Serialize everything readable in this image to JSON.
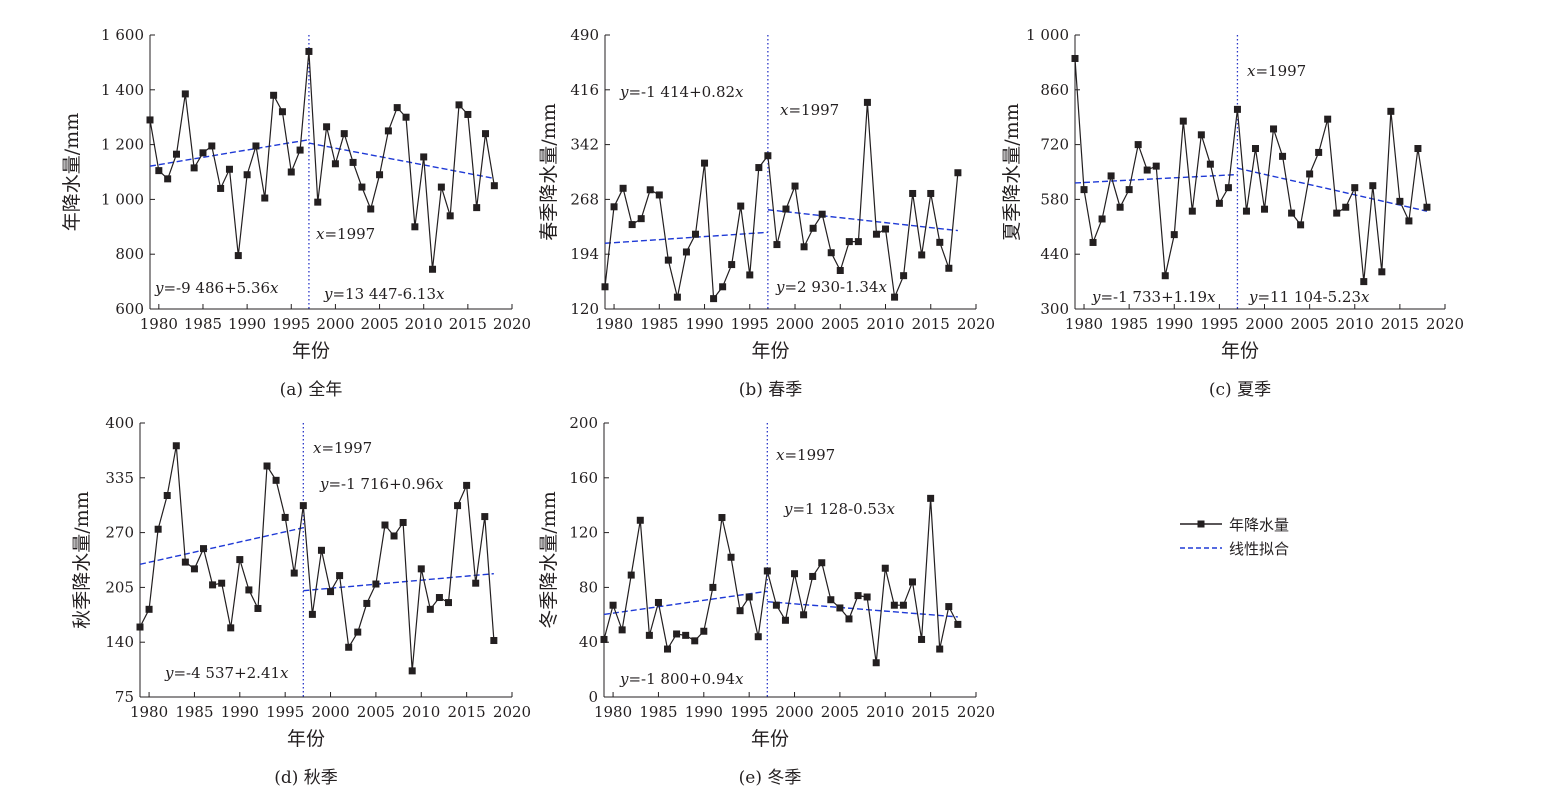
{
  "legend": {
    "series": "年降水量",
    "fit": "线性拟合"
  },
  "colors": {
    "series": "#231f20",
    "fit": "#1f3ad6",
    "breakline": "#2a36c8"
  },
  "chart_data": [
    {
      "type": "line",
      "caption": "(a) 全年",
      "xlabel": "年份",
      "ylabel": "年降水量/mm",
      "xlim": [
        1979,
        2020
      ],
      "ylim": [
        600,
        1600
      ],
      "yticks": [
        600,
        800,
        1000,
        1200,
        1400,
        1600
      ],
      "ytick_labels": [
        "600",
        "800",
        "1 000",
        "1 200",
        "1 400",
        "1 600"
      ],
      "xticks": [
        1980,
        1985,
        1990,
        1995,
        2000,
        2005,
        2010,
        2015,
        2020
      ],
      "xtick_labels": [
        "1980",
        "1985",
        "1990",
        "1995",
        "2000",
        "2005",
        "2010",
        "2015",
        "2020"
      ],
      "x": [
        1979,
        1980,
        1981,
        1982,
        1983,
        1984,
        1985,
        1986,
        1987,
        1988,
        1989,
        1990,
        1991,
        1992,
        1993,
        1994,
        1995,
        1996,
        1997,
        1998,
        1999,
        2000,
        2001,
        2002,
        2003,
        2004,
        2005,
        2006,
        2007,
        2008,
        2009,
        2010,
        2011,
        2012,
        2013,
        2014,
        2015,
        2016,
        2017,
        2018
      ],
      "y": [
        1290,
        1105,
        1075,
        1165,
        1385,
        1115,
        1170,
        1195,
        1040,
        1110,
        795,
        1090,
        1195,
        1005,
        1380,
        1320,
        1100,
        1180,
        1540,
        990,
        1265,
        1130,
        1240,
        1135,
        1045,
        965,
        1090,
        1250,
        1335,
        1300,
        900,
        1155,
        745,
        1045,
        940,
        1345,
        1310,
        970,
        1240,
        1050
      ],
      "breakpoint": 1997,
      "breakpoint_label": "x=1997",
      "fits": [
        {
          "from": 1979,
          "to": 1997,
          "a": -9486,
          "b": 5.36,
          "label": "y=-9 486+5.36x"
        },
        {
          "from": 1997,
          "to": 2018,
          "a": 13447,
          "b": -6.13,
          "label": "y=13 447-6.13x"
        }
      ]
    },
    {
      "type": "line",
      "caption": "(b) 春季",
      "xlabel": "年份",
      "ylabel": "春季降水量/mm",
      "xlim": [
        1979,
        2020
      ],
      "ylim": [
        120,
        490
      ],
      "yticks": [
        120,
        194,
        268,
        342,
        416,
        490
      ],
      "ytick_labels": [
        "120",
        "194",
        "268",
        "342",
        "416",
        "490"
      ],
      "xticks": [
        1980,
        1985,
        1990,
        1995,
        2000,
        2005,
        2010,
        2015,
        2020
      ],
      "xtick_labels": [
        "1980",
        "1985",
        "1990",
        "1995",
        "2000",
        "2005",
        "2010",
        "2015",
        "2020"
      ],
      "x": [
        1979,
        1980,
        1981,
        1982,
        1983,
        1984,
        1985,
        1986,
        1987,
        1988,
        1989,
        1990,
        1991,
        1992,
        1993,
        1994,
        1995,
        1996,
        1997,
        1998,
        1999,
        2000,
        2001,
        2002,
        2003,
        2004,
        2005,
        2006,
        2007,
        2008,
        2009,
        2010,
        2011,
        2012,
        2013,
        2014,
        2015,
        2016,
        2017,
        2018
      ],
      "y": [
        150,
        258,
        283,
        234,
        242,
        281,
        274,
        186,
        136,
        197,
        221,
        317,
        134,
        150,
        180,
        259,
        166,
        311,
        327,
        207,
        255,
        286,
        204,
        229,
        248,
        196,
        172,
        211,
        211,
        399,
        221,
        228,
        136,
        165,
        276,
        193,
        276,
        210,
        175,
        304
      ],
      "breakpoint": 1997,
      "breakpoint_label": "x=1997",
      "fits": [
        {
          "from": 1979,
          "to": 1997,
          "a": -1414,
          "b": 0.82,
          "label": "y=-1 414+0.82x"
        },
        {
          "from": 1997,
          "to": 2018,
          "a": 2930,
          "b": -1.34,
          "label": "y=2 930-1.34x"
        }
      ]
    },
    {
      "type": "line",
      "caption": "(c) 夏季",
      "xlabel": "年份",
      "ylabel": "夏季降水量/mm",
      "xlim": [
        1979,
        2020
      ],
      "ylim": [
        300,
        1000
      ],
      "yticks": [
        300,
        440,
        580,
        720,
        860,
        1000
      ],
      "ytick_labels": [
        "300",
        "440",
        "580",
        "720",
        "860",
        "1 000"
      ],
      "xticks": [
        1980,
        1985,
        1990,
        1995,
        2000,
        2005,
        2010,
        2015,
        2020
      ],
      "xtick_labels": [
        "1980",
        "1985",
        "1990",
        "1995",
        "2000",
        "2005",
        "2010",
        "2015",
        "2020"
      ],
      "x": [
        1979,
        1980,
        1981,
        1982,
        1983,
        1984,
        1985,
        1986,
        1987,
        1988,
        1989,
        1990,
        1991,
        1992,
        1993,
        1994,
        1995,
        1996,
        1997,
        1998,
        1999,
        2000,
        2001,
        2002,
        2003,
        2004,
        2005,
        2006,
        2007,
        2008,
        2009,
        2010,
        2011,
        2012,
        2013,
        2014,
        2015,
        2016,
        2017,
        2018
      ],
      "y": [
        940,
        605,
        470,
        530,
        640,
        560,
        605,
        720,
        655,
        665,
        385,
        490,
        780,
        550,
        745,
        670,
        570,
        610,
        810,
        550,
        710,
        555,
        760,
        690,
        545,
        515,
        645,
        700,
        785,
        545,
        560,
        610,
        370,
        615,
        395,
        805,
        575,
        525,
        710,
        560
      ],
      "breakpoint": 1997,
      "breakpoint_label": "x=1997",
      "fits": [
        {
          "from": 1979,
          "to": 1997,
          "a": -1733,
          "b": 1.19,
          "label": "y=-1 733+1.19x"
        },
        {
          "from": 1997,
          "to": 2018,
          "a": 11104,
          "b": -5.23,
          "label": "y=11 104-5.23x"
        }
      ]
    },
    {
      "type": "line",
      "caption": "(d) 秋季",
      "xlabel": "年份",
      "ylabel": "秋季降水量/mm",
      "xlim": [
        1979,
        2020
      ],
      "ylim": [
        75,
        400
      ],
      "yticks": [
        75,
        140,
        205,
        270,
        335,
        400
      ],
      "ytick_labels": [
        "75",
        "140",
        "205",
        "270",
        "335",
        "400"
      ],
      "xticks": [
        1980,
        1985,
        1990,
        1995,
        2000,
        2005,
        2010,
        2015,
        2020
      ],
      "xtick_labels": [
        "1980",
        "1985",
        "1990",
        "1995",
        "2000",
        "2005",
        "2010",
        "2015",
        "2020"
      ],
      "x": [
        1979,
        1980,
        1981,
        1982,
        1983,
        1984,
        1985,
        1986,
        1987,
        1988,
        1989,
        1990,
        1991,
        1992,
        1993,
        1994,
        1995,
        1996,
        1997,
        1998,
        1999,
        2000,
        2001,
        2002,
        2003,
        2004,
        2005,
        2006,
        2007,
        2008,
        2009,
        2010,
        2011,
        2012,
        2013,
        2014,
        2015,
        2016,
        2017,
        2018
      ],
      "y": [
        158,
        179,
        274,
        314,
        373,
        235,
        227,
        251,
        208,
        210,
        157,
        238,
        202,
        180,
        349,
        332,
        288,
        222,
        302,
        173,
        249,
        200,
        219,
        134,
        152,
        186,
        209,
        279,
        266,
        282,
        106,
        227,
        179,
        193,
        187,
        302,
        326,
        210,
        289,
        142
      ],
      "breakpoint": 1997,
      "breakpoint_label": "x=1997",
      "fits": [
        {
          "from": 1979,
          "to": 1997,
          "a": -4537,
          "b": 2.41,
          "label": "y=-4 537+2.41x"
        },
        {
          "from": 1997,
          "to": 2018,
          "a": -1716,
          "b": 0.96,
          "label": "y=-1 716+0.96x"
        }
      ]
    },
    {
      "type": "line",
      "caption": "(e) 冬季",
      "xlabel": "年份",
      "ylabel": "冬季降水量/mm",
      "xlim": [
        1979,
        2020
      ],
      "ylim": [
        0,
        200
      ],
      "yticks": [
        0,
        40,
        80,
        120,
        160,
        200
      ],
      "ytick_labels": [
        "0",
        "40",
        "80",
        "120",
        "160",
        "200"
      ],
      "xticks": [
        1980,
        1985,
        1990,
        1995,
        2000,
        2005,
        2010,
        2015,
        2020
      ],
      "xtick_labels": [
        "1980",
        "1985",
        "1990",
        "1995",
        "2000",
        "2005",
        "2010",
        "2015",
        "2020"
      ],
      "x": [
        1979,
        1980,
        1981,
        1982,
        1983,
        1984,
        1985,
        1986,
        1987,
        1988,
        1989,
        1990,
        1991,
        1992,
        1993,
        1994,
        1995,
        1996,
        1997,
        1998,
        1999,
        2000,
        2001,
        2002,
        2003,
        2004,
        2005,
        2006,
        2007,
        2008,
        2009,
        2010,
        2011,
        2012,
        2013,
        2014,
        2015,
        2016,
        2017,
        2018
      ],
      "y": [
        42,
        67,
        49,
        89,
        129,
        45,
        69,
        35,
        46,
        45,
        41,
        48,
        80,
        131,
        102,
        63,
        73,
        44,
        92,
        67,
        56,
        90,
        60,
        88,
        98,
        71,
        65,
        57,
        74,
        73,
        25,
        94,
        67,
        67,
        84,
        42,
        145,
        35,
        66,
        53
      ],
      "breakpoint": 1997,
      "breakpoint_label": "x=1997",
      "fits": [
        {
          "from": 1979,
          "to": 1997,
          "a": -1800,
          "b": 0.94,
          "label": "y=-1 800+0.94x"
        },
        {
          "from": 1997,
          "to": 2018,
          "a": 1128,
          "b": -0.53,
          "label": "y=1 128-0.53x"
        }
      ]
    }
  ]
}
